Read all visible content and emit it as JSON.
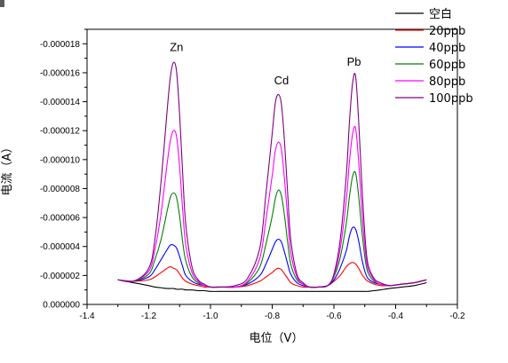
{
  "chart_data": {
    "type": "line",
    "xlabel": "电位（V）",
    "ylabel": "电流（A）",
    "xlim": [
      -1.4,
      -0.2
    ],
    "ylim": [
      0,
      -1.9e-05
    ],
    "xticks": [
      -1.4,
      -1.2,
      -1.0,
      -0.8,
      -0.6,
      -0.4,
      -0.2
    ],
    "xtick_labels": [
      "-1.4",
      "-1.2",
      "-1.0",
      "-0.8",
      "-0.6",
      "-0.4",
      "-0.2"
    ],
    "yticks": [
      0,
      -2e-06,
      -4e-06,
      -6e-06,
      -8e-06,
      -1e-05,
      -1.2e-05,
      -1.4e-05,
      -1.6e-05,
      -1.8e-05
    ],
    "ytick_labels": [
      "0.000000",
      "-0.000002",
      "-0.000004",
      "-0.000006",
      "-0.000008",
      "-0.000010",
      "-0.000012",
      "-0.000014",
      "-0.000016",
      "-0.000018"
    ],
    "annotations": [
      {
        "text": "Zn",
        "x": -1.11,
        "y": -1.75e-05
      },
      {
        "text": "Cd",
        "x": -0.77,
        "y": -1.52e-05
      },
      {
        "text": "Pb",
        "x": -0.535,
        "y": -1.65e-05
      }
    ],
    "legend_position": "top-right",
    "x": [
      -1.3,
      -1.25,
      -1.2,
      -1.18,
      -1.16,
      -1.14,
      -1.13,
      -1.12,
      -1.11,
      -1.1,
      -1.09,
      -1.08,
      -1.06,
      -1.04,
      -1.02,
      -1.0,
      -0.96,
      -0.92,
      -0.88,
      -0.84,
      -0.82,
      -0.8,
      -0.79,
      -0.78,
      -0.77,
      -0.76,
      -0.75,
      -0.74,
      -0.72,
      -0.7,
      -0.68,
      -0.65,
      -0.62,
      -0.6,
      -0.58,
      -0.56,
      -0.55,
      -0.54,
      -0.53,
      -0.52,
      -0.51,
      -0.5,
      -0.49,
      -0.47,
      -0.45,
      -0.42,
      -0.38,
      -0.34,
      -0.3
    ],
    "series": [
      {
        "name": "空白",
        "color": "#000000",
        "y": [
          -1.7e-06,
          -1.5e-06,
          -1.3e-06,
          -1.2e-06,
          -1.15e-06,
          -1.1e-06,
          -1.1e-06,
          -1.1e-06,
          -1.05e-06,
          -1.05e-06,
          -1.05e-06,
          -1e-06,
          -1e-06,
          -9.5e-07,
          -9.5e-07,
          -9e-07,
          -9e-07,
          -9e-07,
          -9e-07,
          -9e-07,
          -9e-07,
          -9e-07,
          -9e-07,
          -9e-07,
          -9e-07,
          -9e-07,
          -9e-07,
          -9e-07,
          -9e-07,
          -9e-07,
          -9e-07,
          -9e-07,
          -9e-07,
          -9e-07,
          -9e-07,
          -9e-07,
          -9e-07,
          -9e-07,
          -9e-07,
          -9e-07,
          -9e-07,
          -9e-07,
          -9e-07,
          -9.5e-07,
          -1e-06,
          -1.1e-06,
          -1.2e-06,
          -1.3e-06,
          -1.5e-06
        ]
      },
      {
        "name": "20ppb",
        "color": "#ff0000",
        "y": [
          -1.7e-06,
          -1.6e-06,
          -1.7e-06,
          -1.9e-06,
          -2.2e-06,
          -2.5e-06,
          -2.6e-06,
          -2.5e-06,
          -2.4e-06,
          -2.1e-06,
          -1.8e-06,
          -1.6e-06,
          -1.4e-06,
          -1.3e-06,
          -1.2e-06,
          -1.2e-06,
          -1.2e-06,
          -1.2e-06,
          -1.3e-06,
          -1.6e-06,
          -1.9e-06,
          -2.2e-06,
          -2.4e-06,
          -2.5e-06,
          -2.4e-06,
          -2.1e-06,
          -1.8e-06,
          -1.5e-06,
          -1.3e-06,
          -1.2e-06,
          -1.2e-06,
          -1.2e-06,
          -1.3e-06,
          -1.6e-06,
          -2e-06,
          -2.6e-06,
          -2.8e-06,
          -2.9e-06,
          -2.8e-06,
          -2.5e-06,
          -2.1e-06,
          -1.8e-06,
          -1.6e-06,
          -1.4e-06,
          -1.3e-06,
          -1.3e-06,
          -1.4e-06,
          -1.5e-06,
          -1.7e-06
        ]
      },
      {
        "name": "40ppb",
        "color": "#0000ff",
        "y": [
          -1.7e-06,
          -1.6e-06,
          -1.9e-06,
          -2.4e-06,
          -3.1e-06,
          -3.8e-06,
          -4.1e-06,
          -4.1e-06,
          -3.9e-06,
          -3.3e-06,
          -2.6e-06,
          -2e-06,
          -1.6e-06,
          -1.4e-06,
          -1.3e-06,
          -1.2e-06,
          -1.2e-06,
          -1.2e-06,
          -1.4e-06,
          -2e-06,
          -2.8e-06,
          -3.8e-06,
          -4.3e-06,
          -4.5e-06,
          -4.3e-06,
          -3.6e-06,
          -2.8e-06,
          -2.1e-06,
          -1.5e-06,
          -1.3e-06,
          -1.2e-06,
          -1.2e-06,
          -1.3e-06,
          -1.7e-06,
          -2.5e-06,
          -3.7e-06,
          -4.7e-06,
          -5.3e-06,
          -5.2e-06,
          -4.4e-06,
          -3.2e-06,
          -2.3e-06,
          -1.8e-06,
          -1.5e-06,
          -1.4e-06,
          -1.3e-06,
          -1.4e-06,
          -1.5e-06,
          -1.7e-06
        ]
      },
      {
        "name": "60ppb",
        "color": "#008000",
        "y": [
          -1.7e-06,
          -1.6e-06,
          -2.1e-06,
          -3.1e-06,
          -4.5e-06,
          -6.5e-06,
          -7.4e-06,
          -7.7e-06,
          -7.4e-06,
          -6.1e-06,
          -4.3e-06,
          -3e-06,
          -1.9e-06,
          -1.5e-06,
          -1.3e-06,
          -1.2e-06,
          -1.2e-06,
          -1.2e-06,
          -1.5e-06,
          -2.6e-06,
          -4.2e-06,
          -6.1e-06,
          -7.3e-06,
          -7.9e-06,
          -7.5e-06,
          -6.1e-06,
          -4.3e-06,
          -2.8e-06,
          -1.7e-06,
          -1.4e-06,
          -1.2e-06,
          -1.2e-06,
          -1.3e-06,
          -1.9e-06,
          -3.2e-06,
          -5.6e-06,
          -7.4e-06,
          -8.8e-06,
          -9.1e-06,
          -7.5e-06,
          -5.2e-06,
          -3.3e-06,
          -2.2e-06,
          -1.6e-06,
          -1.4e-06,
          -1.3e-06,
          -1.4e-06,
          -1.5e-06,
          -1.7e-06
        ]
      },
      {
        "name": "80ppb",
        "color": "#ff00ff",
        "y": [
          -1.7e-06,
          -1.6e-06,
          -2.3e-06,
          -3.8e-06,
          -6.3e-06,
          -9.8e-06,
          -1.13e-05,
          -1.2e-05,
          -1.16e-05,
          -9.5e-06,
          -6.5e-06,
          -4.1e-06,
          -2.2e-06,
          -1.6e-06,
          -1.3e-06,
          -1.2e-06,
          -1.2e-06,
          -1.2e-06,
          -1.6e-06,
          -3.2e-06,
          -5.9e-06,
          -8.9e-06,
          -1.06e-05,
          -1.12e-05,
          -1.07e-05,
          -8.6e-06,
          -6e-06,
          -3.6e-06,
          -1.9e-06,
          -1.4e-06,
          -1.2e-06,
          -1.2e-06,
          -1.3e-06,
          -2e-06,
          -3.8e-06,
          -7.2e-06,
          -9.8e-06,
          -1.17e-05,
          -1.22e-05,
          -9.9e-06,
          -6.7e-06,
          -4e-06,
          -2.5e-06,
          -1.7e-06,
          -1.4e-06,
          -1.3e-06,
          -1.4e-06,
          -1.5e-06,
          -1.7e-06
        ]
      },
      {
        "name": "100ppb",
        "color": "#800080",
        "y": [
          -1.7e-06,
          -1.6e-06,
          -2.5e-06,
          -4.5e-06,
          -8.5e-06,
          -1.35e-05,
          -1.57e-05,
          -1.67e-05,
          -1.61e-05,
          -1.31e-05,
          -9e-06,
          -5.5e-06,
          -2.6e-06,
          -1.7e-06,
          -1.4e-06,
          -1.2e-06,
          -1.2e-06,
          -1.3e-06,
          -1.8e-06,
          -3.9e-06,
          -7.7e-06,
          -1.18e-05,
          -1.39e-05,
          -1.45e-05,
          -1.38e-05,
          -1.12e-05,
          -7.7e-06,
          -4.5e-06,
          -2.1e-06,
          -1.5e-06,
          -1.2e-06,
          -1.2e-06,
          -1.3e-06,
          -2.1e-06,
          -4.4e-06,
          -8.9e-06,
          -1.25e-05,
          -1.52e-05,
          -1.58e-05,
          -1.27e-05,
          -8.5e-06,
          -4.9e-06,
          -2.8e-06,
          -1.8e-06,
          -1.5e-06,
          -1.3e-06,
          -1.4e-06,
          -1.5e-06,
          -1.7e-06
        ]
      }
    ]
  }
}
